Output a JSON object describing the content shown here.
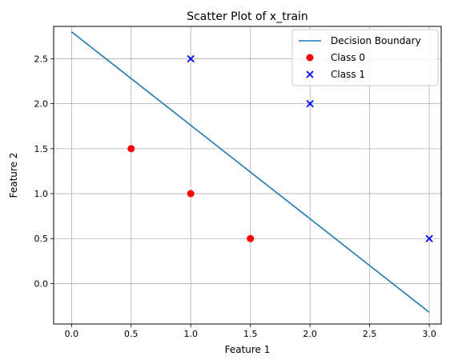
{
  "chart_data": {
    "type": "scatter",
    "title": "Scatter Plot of x_train",
    "xlabel": "Feature 1",
    "ylabel": "Feature 2",
    "xlim": [
      -0.15,
      3.1
    ],
    "ylim": [
      -0.45,
      2.86
    ],
    "xticks": [
      0.0,
      0.5,
      1.0,
      1.5,
      2.0,
      2.5,
      3.0
    ],
    "xtick_labels": [
      "0.0",
      "0.5",
      "1.0",
      "1.5",
      "2.0",
      "2.5",
      "3.0"
    ],
    "yticks": [
      0.0,
      0.5,
      1.0,
      1.5,
      2.0,
      2.5
    ],
    "ytick_labels": [
      "0.0",
      "0.5",
      "1.0",
      "1.5",
      "2.0",
      "2.5"
    ],
    "grid": true,
    "legend_position": "top-right",
    "line": {
      "name": "Decision Boundary",
      "color": "#1f77b4",
      "x": [
        0.0,
        3.0
      ],
      "y": [
        2.8,
        -0.32
      ]
    },
    "series": [
      {
        "name": "Class 0",
        "marker": "circle",
        "color": "#ff0000",
        "x": [
          0.5,
          1.0,
          1.5
        ],
        "y": [
          1.5,
          1.0,
          0.5
        ]
      },
      {
        "name": "Class 1",
        "marker": "x",
        "color": "#0000ff",
        "x": [
          1.0,
          2.0,
          3.0
        ],
        "y": [
          2.5,
          2.0,
          0.5
        ]
      }
    ]
  }
}
